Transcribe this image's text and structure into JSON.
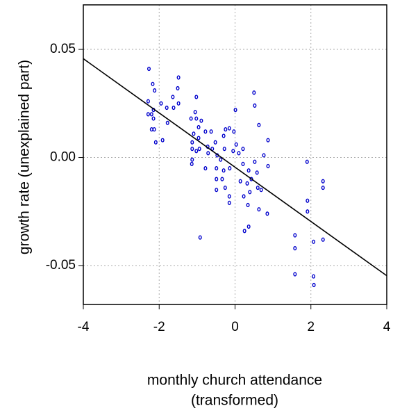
{
  "chart_data": {
    "type": "scatter",
    "xlabel": [
      "monthly church attendance",
      "(transformed)"
    ],
    "ylabel": "growth rate (unexplained part)",
    "xlim": [
      -4,
      4
    ],
    "ylim": [
      -0.068,
      0.0706
    ],
    "xticks": [
      -4,
      -2,
      0,
      2,
      4
    ],
    "yticks": [
      {
        "value": 0.05,
        "label": "0.05"
      },
      {
        "value": 0,
        "label": "0.00"
      },
      {
        "value": -0.05,
        "label": "-0.05"
      }
    ],
    "grid": true,
    "color": "#0000cc",
    "fit": {
      "color": "#000000",
      "x": [
        -4,
        4
      ],
      "y": [
        0.0457,
        -0.0547
      ]
    },
    "x": [
      -2.27,
      -2.17,
      -2.12,
      -2.29,
      -2.15,
      -2.29,
      -2.2,
      -2.15,
      -2.13,
      -2.2,
      -2.09,
      -1.95,
      -1.91,
      -1.8,
      -1.78,
      -1.64,
      -1.62,
      -1.49,
      -1.51,
      -1.49,
      -1.16,
      -1.02,
      -1.05,
      -1.02,
      -0.89,
      -0.96,
      -1.09,
      -0.96,
      -1.13,
      -1.13,
      -1.02,
      -1.13,
      -1.14,
      -0.92,
      -0.78,
      -0.72,
      -0.71,
      -0.78,
      -0.63,
      -0.6,
      -0.52,
      -0.47,
      -0.49,
      -0.49,
      -0.49,
      -0.38,
      -0.3,
      -0.28,
      -0.3,
      -0.25,
      -0.34,
      -0.26,
      -0.15,
      -0.15,
      -0.14,
      -0.05,
      -0.03,
      0.01,
      0.03,
      0.1,
      0.21,
      0.14,
      0.21,
      0.23,
      0.25,
      0.32,
      0.34,
      0.36,
      0.36,
      0.43,
      0.52,
      0.52,
      0.5,
      0.58,
      0.6,
      0.63,
      0.63,
      0.69,
      0.76,
      0.85,
      0.87,
      0.87,
      0.39,
      1.9,
      1.91,
      1.91,
      1.58,
      1.58,
      1.58,
      2.07,
      2.07,
      2.08,
      2.32,
      2.32,
      2.32,
      -0.94,
      -0.15
    ],
    "y": [
      0.041,
      0.034,
      0.031,
      0.026,
      0.022,
      0.02,
      0.02,
      0.018,
      0.013,
      0.013,
      0.007,
      0.025,
      0.008,
      0.023,
      0.016,
      0.028,
      0.023,
      0.037,
      0.032,
      0.025,
      0.018,
      0.028,
      0.021,
      0.018,
      0.017,
      0.014,
      0.011,
      0.009,
      0.007,
      0.004,
      0.003,
      -0.001,
      -0.003,
      -0.037,
      0.012,
      0.005,
      0.002,
      -0.005,
      0.012,
      0.004,
      0.007,
      0.001,
      -0.005,
      -0.01,
      -0.015,
      -0.001,
      0.01,
      0.004,
      -0.006,
      0.013,
      -0.01,
      -0.014,
      -0.018,
      -0.021,
      -0.005,
      0.003,
      0.012,
      0.022,
      0.006,
      0.002,
      0.004,
      -0.011,
      -0.003,
      -0.018,
      -0.034,
      -0.012,
      -0.022,
      -0.032,
      -0.006,
      -0.01,
      -0.002,
      0.024,
      0.03,
      -0.007,
      -0.014,
      0.015,
      -0.024,
      -0.015,
      0.001,
      -0.026,
      -0.004,
      0.008,
      -0.016,
      -0.002,
      -0.02,
      -0.025,
      -0.036,
      -0.042,
      -0.054,
      -0.039,
      -0.055,
      -0.059,
      -0.011,
      -0.014,
      -0.038,
      0.004,
      0.0135
    ]
  }
}
